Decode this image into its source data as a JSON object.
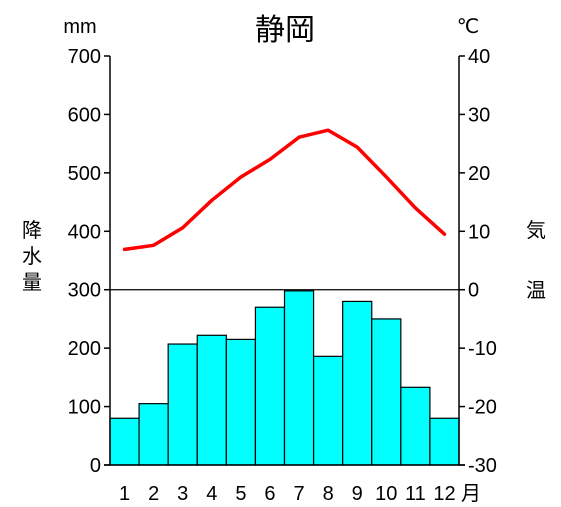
{
  "chart_data": {
    "type": "bar+line",
    "title": "静岡",
    "categories": [
      "1",
      "2",
      "3",
      "4",
      "5",
      "6",
      "7",
      "8",
      "9",
      "10",
      "11",
      "12"
    ],
    "x_unit": "月",
    "left_axis": {
      "unit": "mm",
      "label": "降水量",
      "range": [
        0,
        700
      ],
      "ticks": [
        0,
        100,
        200,
        300,
        400,
        500,
        600,
        700
      ]
    },
    "right_axis": {
      "unit": "℃",
      "label": "気温",
      "range": [
        -30,
        40
      ],
      "ticks": [
        -30,
        -20,
        -10,
        0,
        10,
        20,
        30,
        40
      ]
    },
    "series": [
      {
        "name": "降水量",
        "type": "bar",
        "axis": "left",
        "color": "#00ffff",
        "values": [
          80,
          105,
          207,
          222,
          215,
          270,
          298,
          186,
          280,
          250,
          133,
          80
        ]
      },
      {
        "name": "気温",
        "type": "line",
        "axis": "right",
        "color": "#ff0000",
        "values": [
          6.9,
          7.6,
          10.6,
          15.3,
          19.3,
          22.3,
          26.1,
          27.3,
          24.4,
          19.3,
          14.0,
          9.5
        ]
      }
    ],
    "grid": false,
    "legend": "none"
  }
}
